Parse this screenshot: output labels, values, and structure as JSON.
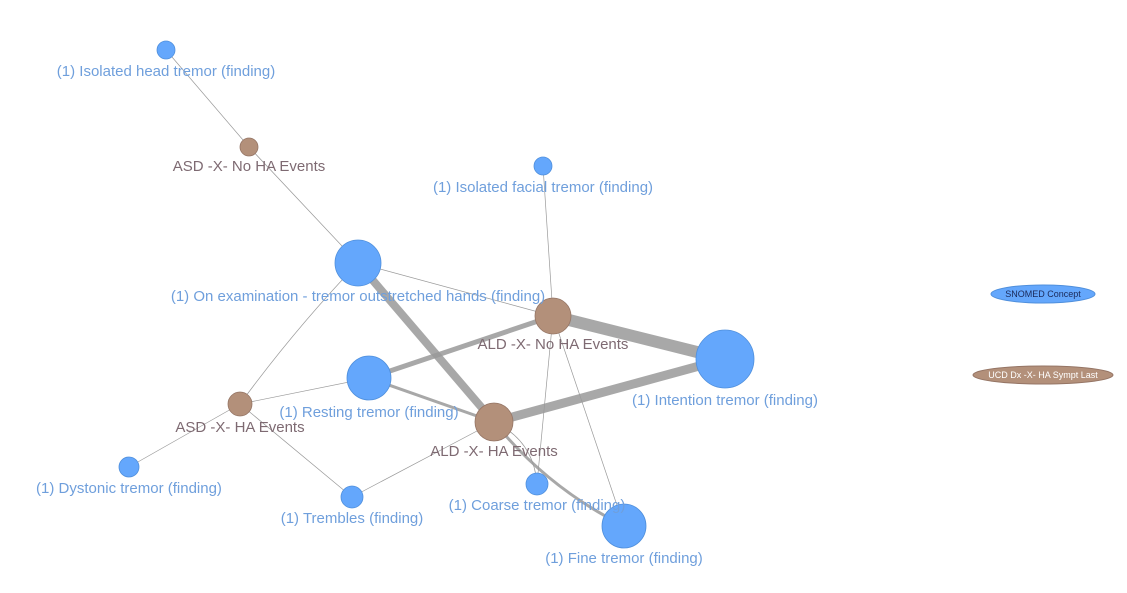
{
  "colors": {
    "concept_fill": "#64a7fc",
    "concept_stroke": "#4f8fdc",
    "concept_text": "#6f9fdc",
    "group_fill": "#b3907a",
    "group_stroke": "#957565",
    "group_text": "#7e6a72",
    "edge": "#999999",
    "legend_concept_text": "#1b2a5a",
    "legend_group_text": "#ffffff"
  },
  "legend": {
    "concept": "SNOMED Concept",
    "group": "UCD Dx -X- HA Sympt Last"
  },
  "nodes": [
    {
      "id": "head",
      "label": "(1) Isolated head tremor (finding)",
      "kind": "concept"
    },
    {
      "id": "asd_no",
      "label": "ASD -X- No HA Events",
      "kind": "group"
    },
    {
      "id": "facial",
      "label": "(1) Isolated facial tremor (finding)",
      "kind": "concept"
    },
    {
      "id": "exam",
      "label": "(1) On examination - tremor outstretched hands (finding)",
      "kind": "concept"
    },
    {
      "id": "ald_no",
      "label": "ALD -X- No HA Events",
      "kind": "group"
    },
    {
      "id": "intention",
      "label": "(1) Intention tremor (finding)",
      "kind": "concept"
    },
    {
      "id": "resting",
      "label": "(1) Resting tremor (finding)",
      "kind": "concept"
    },
    {
      "id": "asd_ha",
      "label": "ASD -X- HA Events",
      "kind": "group"
    },
    {
      "id": "ald_ha",
      "label": "ALD -X- HA Events",
      "kind": "group"
    },
    {
      "id": "dystonic",
      "label": "(1) Dystonic tremor (finding)",
      "kind": "concept"
    },
    {
      "id": "trembles",
      "label": "(1) Trembles (finding)",
      "kind": "concept"
    },
    {
      "id": "coarse",
      "label": "(1) Coarse tremor (finding)",
      "kind": "concept"
    },
    {
      "id": "fine",
      "label": "(1) Fine tremor (finding)",
      "kind": "concept"
    }
  ],
  "edges": [
    {
      "source": "head",
      "target": "asd_no",
      "weight": 1
    },
    {
      "source": "asd_no",
      "target": "exam",
      "weight": 1
    },
    {
      "source": "facial",
      "target": "ald_no",
      "weight": 1
    },
    {
      "source": "exam",
      "target": "ald_no",
      "weight": 1
    },
    {
      "source": "exam",
      "target": "ald_ha",
      "weight": 8
    },
    {
      "source": "exam",
      "target": "asd_ha",
      "weight": 1
    },
    {
      "source": "ald_no",
      "target": "intention",
      "weight": 12
    },
    {
      "source": "ald_no",
      "target": "resting",
      "weight": 5
    },
    {
      "source": "ald_no",
      "target": "coarse",
      "weight": 1
    },
    {
      "source": "ald_no",
      "target": "fine",
      "weight": 1
    },
    {
      "source": "ald_ha",
      "target": "intention",
      "weight": 9
    },
    {
      "source": "ald_ha",
      "target": "resting",
      "weight": 3
    },
    {
      "source": "ald_ha",
      "target": "coarse",
      "weight": 1
    },
    {
      "source": "ald_ha",
      "target": "fine",
      "weight": 3
    },
    {
      "source": "asd_ha",
      "target": "resting",
      "weight": 1
    },
    {
      "source": "asd_ha",
      "target": "dystonic",
      "weight": 1
    },
    {
      "source": "asd_ha",
      "target": "trembles",
      "weight": 1
    },
    {
      "source": "trembles",
      "target": "ald_ha",
      "weight": 1
    }
  ]
}
